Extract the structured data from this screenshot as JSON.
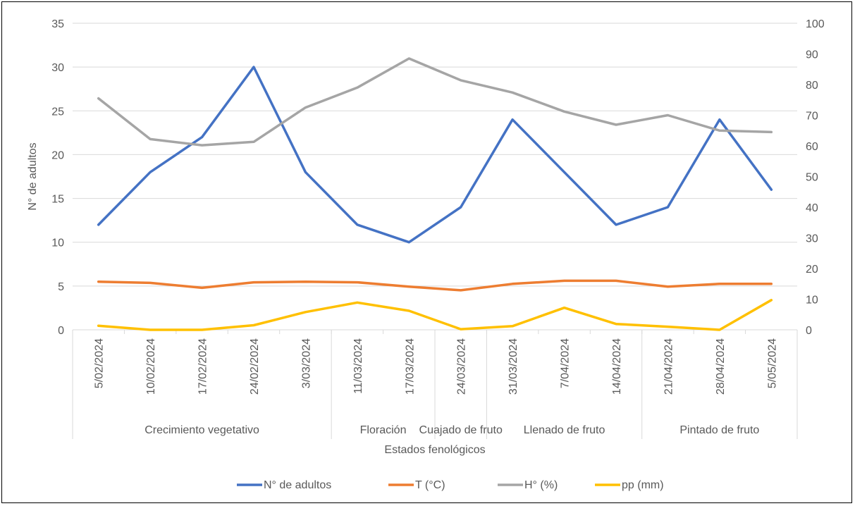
{
  "chart_data": {
    "type": "line",
    "xlabel": "Estados fenológicos",
    "ylabel": "N° de adultos",
    "y2label": "",
    "ylim": [
      0,
      35
    ],
    "y2lim": [
      0,
      100
    ],
    "yticks": [
      0,
      5,
      10,
      15,
      20,
      25,
      30,
      35
    ],
    "y2ticks": [
      0,
      10,
      20,
      30,
      40,
      50,
      60,
      70,
      80,
      90,
      100
    ],
    "categories": [
      "5/02/2024",
      "10/02/2024",
      "17/02/2024",
      "24/02/2024",
      "3/03/2024",
      "11/03/2024",
      "17/03/2024",
      "24/03/2024",
      "31/03/2024",
      "7/04/2024",
      "14/04/2024",
      "21/04/2024",
      "28/04/2024",
      "5/05/2024"
    ],
    "groups": [
      {
        "label": "Crecimiento vegetativo",
        "start": 0,
        "end": 4
      },
      {
        "label": "Floración",
        "start": 5,
        "end": 6
      },
      {
        "label": "Cuajado de fruto",
        "start": 7,
        "end": 7
      },
      {
        "label": "Llenado de fruto",
        "start": 8,
        "end": 10
      },
      {
        "label": "Pintado de fruto",
        "start": 11,
        "end": 13
      }
    ],
    "series": [
      {
        "name": "N° de adultos",
        "axis": "left",
        "color": "#4472C4",
        "values": [
          12,
          18,
          22,
          30,
          18,
          12,
          10,
          14,
          24,
          18,
          12,
          14,
          24,
          16
        ]
      },
      {
        "name": "T (°C)",
        "axis": "right",
        "color": "#ED7D31",
        "values": [
          15.7,
          15.3,
          13.7,
          15.5,
          15.7,
          15.5,
          14.1,
          12.9,
          15.0,
          16.0,
          16.0,
          14.1,
          15.0,
          15.0
        ]
      },
      {
        "name": "H° (%)",
        "axis": "right",
        "color": "#A5A5A5",
        "values": [
          75.5,
          62.2,
          60.2,
          61.3,
          72.5,
          79.0,
          88.5,
          81.4,
          77.4,
          71.2,
          66.9,
          70.0,
          65.0,
          64.5
        ]
      },
      {
        "name": "pp (mm)",
        "axis": "right",
        "color": "#FFC000",
        "values": [
          1.3,
          0.0,
          0.0,
          1.5,
          5.8,
          8.9,
          6.2,
          0.2,
          1.2,
          7.2,
          1.9,
          1.0,
          0.0,
          9.7
        ]
      }
    ],
    "legend_position": "bottom",
    "grid": true
  }
}
